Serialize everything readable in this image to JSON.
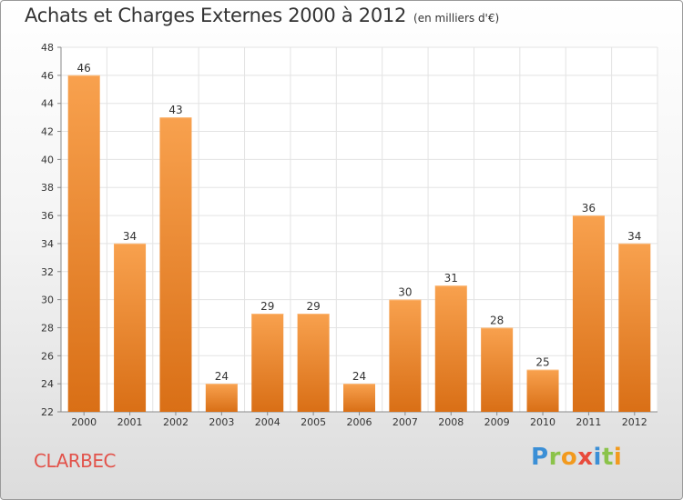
{
  "title": "Achats et Charges Externes 2000 à 2012",
  "subtitle": "(en milliers d'€)",
  "place": "CLARBEC",
  "logo": {
    "text": "Proxiti",
    "letters": [
      {
        "ch": "P",
        "color": "#3b8fd6"
      },
      {
        "ch": "r",
        "color": "#8bc34a"
      },
      {
        "ch": "o",
        "color": "#f29a1e"
      },
      {
        "ch": "x",
        "color": "#e84b3c"
      },
      {
        "ch": "i",
        "color": "#3b8fd6"
      },
      {
        "ch": "t",
        "color": "#8bc34a"
      },
      {
        "ch": "i",
        "color": "#f29a1e"
      }
    ]
  },
  "colors": {
    "bar_light": "#f8a14e",
    "bar_dark": "#d96f16",
    "grid": "#e3e3e3",
    "place": "#e2524a"
  },
  "chart_data": {
    "type": "bar",
    "title": "Achats et Charges Externes 2000 à 2012",
    "subtitle": "(en milliers d'€)",
    "categories": [
      "2000",
      "2001",
      "2002",
      "2003",
      "2004",
      "2005",
      "2006",
      "2007",
      "2008",
      "2009",
      "2010",
      "2011",
      "2012"
    ],
    "values": [
      46,
      34,
      43,
      24,
      29,
      29,
      24,
      30,
      31,
      28,
      25,
      36,
      34
    ],
    "xlabel": "",
    "ylabel": "",
    "ylim": [
      22,
      48
    ],
    "yticks": [
      22,
      24,
      26,
      28,
      30,
      32,
      34,
      36,
      38,
      40,
      42,
      44,
      46,
      48
    ],
    "grid": true,
    "legend": "none"
  }
}
